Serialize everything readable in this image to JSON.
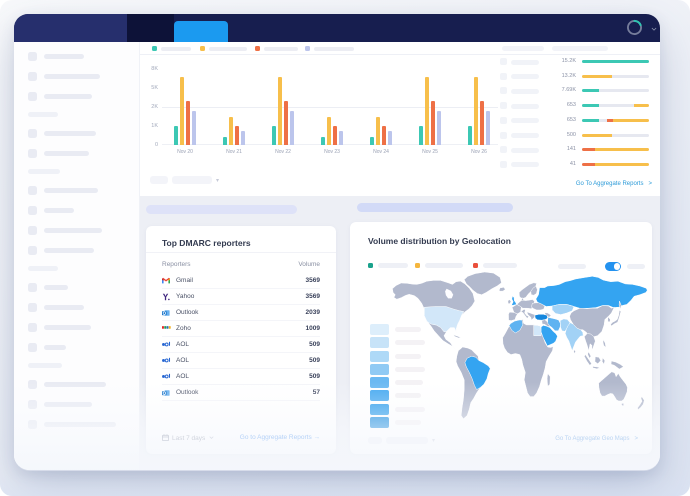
{
  "topbar": {
    "tab_color": "#1b9af0",
    "avatar": "avatar-ring",
    "chevron": "v"
  },
  "chart_data": {
    "type": "bar",
    "title": "",
    "categories": [
      "Nov 20",
      "Nov 21",
      "Nov 22",
      "Nov 23",
      "Nov 24",
      "Nov 25",
      "Nov 26"
    ],
    "series": [
      {
        "name": "teal",
        "color": "#3cc8b4",
        "values": [
          2000,
          800,
          2000,
          800,
          800,
          2000,
          2000
        ]
      },
      {
        "name": "yellow",
        "color": "#f7bf4b",
        "values": [
          7200,
          2900,
          7200,
          2900,
          2900,
          7200,
          7200
        ]
      },
      {
        "name": "red",
        "color": "#ee7046",
        "values": [
          4600,
          2000,
          4600,
          2000,
          2000,
          4600,
          4600
        ]
      },
      {
        "name": "lavender",
        "color": "#bcc5ec",
        "values": [
          3600,
          1500,
          3600,
          1500,
          1500,
          3600,
          3600
        ]
      }
    ],
    "ylim": [
      0,
      8000
    ],
    "ytick_labels": [
      "8K",
      "5K",
      "2K",
      "1K",
      "0"
    ],
    "legend_position": "top",
    "grid": "single-line"
  },
  "mini_bars": {
    "rows": [
      {
        "label": "15.2K",
        "segments": [
          {
            "color": "teal",
            "pct": 100
          }
        ]
      },
      {
        "label": "13.2K",
        "segments": [
          {
            "color": "yellow",
            "pct": 45
          },
          {
            "color": "gray",
            "pct": 55
          }
        ]
      },
      {
        "label": "7.69K",
        "segments": [
          {
            "color": "teal",
            "pct": 25
          },
          {
            "color": "gray",
            "pct": 75
          }
        ]
      },
      {
        "label": "653",
        "segments": [
          {
            "color": "teal",
            "pct": 25
          },
          {
            "color": "gray",
            "pct": 53
          },
          {
            "color": "yellow",
            "pct": 22
          }
        ]
      },
      {
        "label": "653",
        "segments": [
          {
            "color": "teal",
            "pct": 25
          },
          {
            "color": "gray",
            "pct": 13
          },
          {
            "color": "red",
            "pct": 8
          },
          {
            "color": "yellow",
            "pct": 54
          }
        ]
      },
      {
        "label": "500",
        "segments": [
          {
            "color": "yellow",
            "pct": 45
          },
          {
            "color": "gray",
            "pct": 55
          }
        ]
      },
      {
        "label": "141",
        "segments": [
          {
            "color": "red",
            "pct": 20
          },
          {
            "color": "yellow",
            "pct": 80
          }
        ]
      },
      {
        "label": "41",
        "segments": [
          {
            "color": "red",
            "pct": 20
          },
          {
            "color": "yellow",
            "pct": 80
          }
        ]
      }
    ],
    "link": "Go To Aggregate Reports",
    "link_arrow": ">"
  },
  "reporters_card": {
    "title": "Top DMARC reporters",
    "col_reporters": "Reporters",
    "col_volume": "Volume",
    "rows": [
      {
        "name": "Gmail",
        "icon": "gmail",
        "volume": "3569"
      },
      {
        "name": "Yahoo",
        "icon": "yahoo",
        "volume": "3569"
      },
      {
        "name": "Outlook",
        "icon": "outlook",
        "volume": "2039"
      },
      {
        "name": "Zoho",
        "icon": "zoho",
        "volume": "1009"
      },
      {
        "name": "AOL",
        "icon": "aol",
        "volume": "509"
      },
      {
        "name": "AOL",
        "icon": "aol",
        "volume": "509"
      },
      {
        "name": "AOL",
        "icon": "aol",
        "volume": "509"
      },
      {
        "name": "Outlook",
        "icon": "outlook",
        "volume": "57"
      }
    ],
    "footer_range": "Last 7 days",
    "footer_link": "Go to Aggregate Reports",
    "footer_link_arrow": "→"
  },
  "geo_card": {
    "title": "Volume distribution by Geolocation",
    "legend_colors": [
      "#1aa28c",
      "#f5b63e",
      "#ea4f3b"
    ],
    "toggle_on": true,
    "scale_colors": [
      "#ddeefb",
      "#c7e3f8",
      "#aed9f7",
      "#90caf4",
      "#6bb9f2",
      "#47a9f0",
      "#2b9ceb",
      "#1188dd"
    ],
    "regions": [
      {
        "id": "usa",
        "level": "pale"
      },
      {
        "id": "brazil",
        "level": "high"
      },
      {
        "id": "uk",
        "level": "high"
      },
      {
        "id": "russia",
        "level": "high"
      },
      {
        "id": "turkey",
        "level": "dark"
      },
      {
        "id": "saudi-arabia",
        "level": "high"
      },
      {
        "id": "iran",
        "level": "mid"
      },
      {
        "id": "afpak",
        "level": "low"
      },
      {
        "id": "kazakhstan",
        "level": "low"
      },
      {
        "id": "india",
        "level": "low"
      },
      {
        "id": "algeria",
        "level": "mid"
      },
      {
        "id": "egypt",
        "level": "pale"
      }
    ],
    "link": "Go To Aggregate Geo Maps",
    "link_arrow": ">"
  },
  "colors": {
    "teal": "#3cc8b4",
    "yellow": "#f7bf4b",
    "red": "#ee7046",
    "lavender": "#bcc5ec",
    "gray_track": "#e6e8f0",
    "link_blue": "#2f80ed",
    "link_teal_blue": "#2d9bd8",
    "map_base": "#b2b9cd",
    "map_high": "#34a4f1",
    "map_mid": "#5fb3f1",
    "map_low": "#a2d2f6",
    "map_pale": "#d2e7f9",
    "map_dark": "#1486dd"
  }
}
